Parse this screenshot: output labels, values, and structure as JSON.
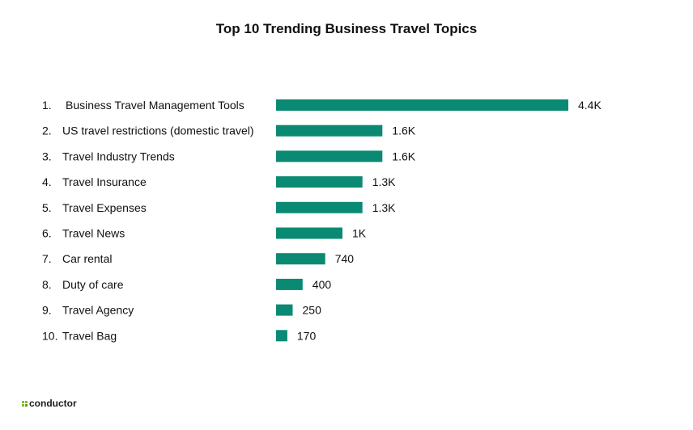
{
  "brand": {
    "logo_text": "conductor",
    "logo_icon": "conductor-logo-icon",
    "accent_color": "#7bbf2a"
  },
  "chart_data": {
    "type": "bar",
    "orientation": "horizontal",
    "title": "Top 10 Trending Business Travel Topics",
    "ranks": [
      "1.",
      "2.",
      "3.",
      "4.",
      "5.",
      "6.",
      "7.",
      "8.",
      "9.",
      "10."
    ],
    "categories": [
      "Business Travel Management Tools",
      "US travel restrictions (domestic travel)",
      "Travel Industry Trends",
      "Travel Insurance",
      "Travel Expenses",
      "Travel News",
      "Car rental",
      "Duty of care",
      "Travel Agency",
      "Travel Bag"
    ],
    "values": [
      4400,
      1600,
      1600,
      1300,
      1300,
      1000,
      740,
      400,
      250,
      170
    ],
    "value_labels": [
      "4.4K",
      "1.6K",
      "1.6K",
      "1.3K",
      "1.3K",
      "1K",
      "740",
      "400",
      "250",
      "170"
    ],
    "bar_color": "#0a8a73",
    "xlim": [
      0,
      4400
    ],
    "grid": false,
    "legend": "none"
  }
}
